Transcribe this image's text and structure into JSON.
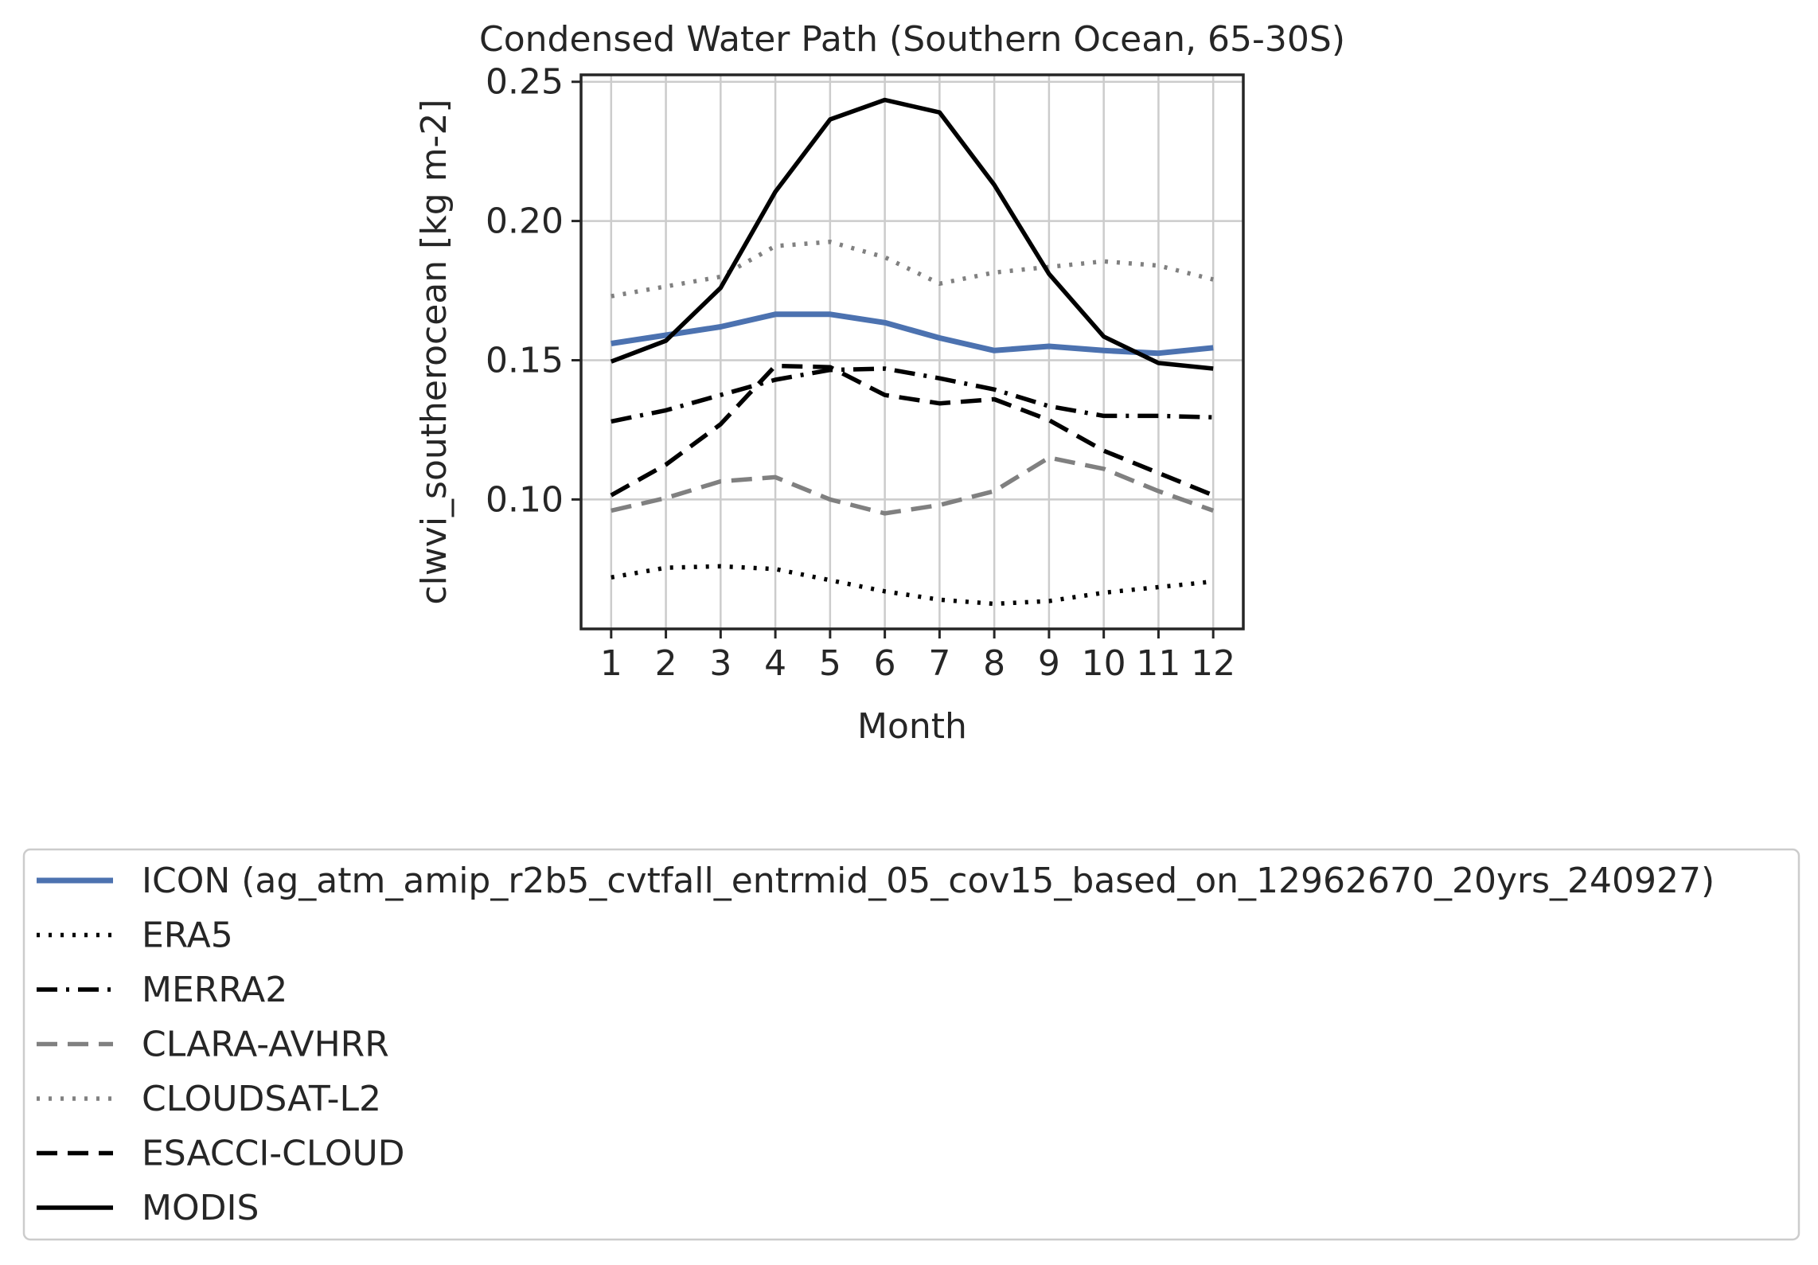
{
  "chart_data": {
    "type": "line",
    "title": "Condensed Water Path (Southern Ocean, 65-30S)",
    "xlabel": "Month",
    "ylabel": "clwvi_southerocean [kg m-2]",
    "x": [
      1,
      2,
      3,
      4,
      5,
      6,
      7,
      8,
      9,
      10,
      11,
      12
    ],
    "xticks": [
      "1",
      "2",
      "3",
      "4",
      "5",
      "6",
      "7",
      "8",
      "9",
      "10",
      "11",
      "12"
    ],
    "xlim": [
      0.45,
      12.55
    ],
    "ylim": [
      0.0535,
      0.2525
    ],
    "yticks": [
      0.1,
      0.15,
      0.2,
      0.25
    ],
    "ytick_labels": [
      "0.10",
      "0.15",
      "0.20",
      "0.25"
    ],
    "grid": true,
    "legend_position": "below",
    "series": [
      {
        "name": "ICON (ag_atm_amip_r2b5_cvtfall_entrmid_05_cov15_based_on_12962670_20yrs_240927)",
        "color": "#4c72b0",
        "style": "solid",
        "values": [
          0.156,
          0.159,
          0.162,
          0.1665,
          0.1665,
          0.1635,
          0.158,
          0.1535,
          0.155,
          0.1535,
          0.1525,
          0.1545
        ]
      },
      {
        "name": "ERA5",
        "color": "#000000",
        "style": "dotted",
        "values": [
          0.072,
          0.0755,
          0.076,
          0.075,
          0.071,
          0.067,
          0.064,
          0.0625,
          0.0635,
          0.0665,
          0.0685,
          0.0705
        ]
      },
      {
        "name": "MERRA2",
        "color": "#000000",
        "style": "dashdot",
        "values": [
          0.128,
          0.132,
          0.1375,
          0.143,
          0.1465,
          0.147,
          0.1435,
          0.1395,
          0.1335,
          0.13,
          0.13,
          0.1295
        ]
      },
      {
        "name": "CLARA-AVHRR",
        "color": "#808080",
        "style": "dashed",
        "values": [
          0.096,
          0.1005,
          0.1065,
          0.108,
          0.1,
          0.095,
          0.098,
          0.103,
          0.115,
          0.111,
          0.103,
          0.096
        ]
      },
      {
        "name": "CLOUDSAT-L2",
        "color": "#808080",
        "style": "dotted",
        "values": [
          0.173,
          0.1765,
          0.18,
          0.191,
          0.1925,
          0.187,
          0.1775,
          0.1815,
          0.1835,
          0.1855,
          0.184,
          0.179
        ]
      },
      {
        "name": "ESACCI-CLOUD",
        "color": "#000000",
        "style": "dashed",
        "values": [
          0.1015,
          0.1125,
          0.127,
          0.148,
          0.1475,
          0.1375,
          0.1345,
          0.136,
          0.1285,
          0.1175,
          0.1095,
          0.1015
        ]
      },
      {
        "name": "MODIS",
        "color": "#000000",
        "style": "solid",
        "values": [
          0.1495,
          0.157,
          0.176,
          0.2105,
          0.2365,
          0.2435,
          0.239,
          0.213,
          0.181,
          0.1585,
          0.149,
          0.147
        ]
      }
    ]
  }
}
